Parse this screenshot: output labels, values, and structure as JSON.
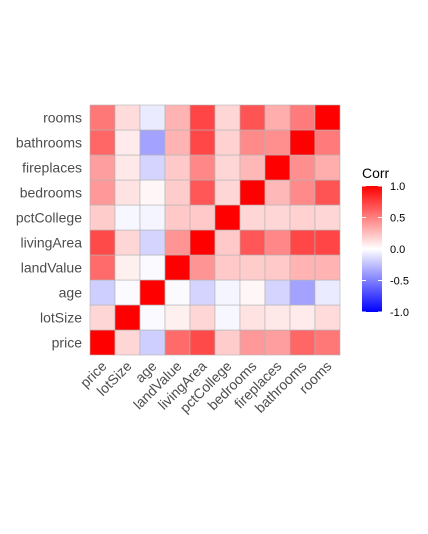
{
  "chart_data": {
    "type": "heatmap",
    "variables": [
      "price",
      "lotSize",
      "age",
      "landValue",
      "livingArea",
      "pctCollege",
      "bedrooms",
      "fireplaces",
      "bathrooms",
      "rooms"
    ],
    "matrix": [
      [
        1.0,
        0.16,
        -0.19,
        0.58,
        0.71,
        0.2,
        0.4,
        0.38,
        0.6,
        0.53
      ],
      [
        0.16,
        1.0,
        -0.02,
        0.06,
        0.16,
        -0.03,
        0.11,
        0.09,
        0.08,
        0.14
      ],
      [
        -0.19,
        -0.02,
        1.0,
        -0.02,
        -0.17,
        -0.04,
        0.03,
        -0.17,
        -0.36,
        -0.08
      ],
      [
        0.58,
        0.06,
        -0.02,
        1.0,
        0.42,
        0.21,
        0.2,
        0.21,
        0.3,
        0.3
      ],
      [
        0.71,
        0.16,
        -0.17,
        0.42,
        1.0,
        0.21,
        0.66,
        0.47,
        0.72,
        0.73
      ],
      [
        0.2,
        -0.03,
        -0.04,
        0.21,
        0.21,
        1.0,
        0.16,
        0.16,
        0.18,
        0.16
      ],
      [
        0.4,
        0.11,
        0.03,
        0.2,
        0.66,
        0.16,
        1.0,
        0.28,
        0.46,
        0.67
      ],
      [
        0.38,
        0.09,
        -0.17,
        0.21,
        0.47,
        0.16,
        0.28,
        1.0,
        0.44,
        0.32
      ],
      [
        0.6,
        0.08,
        -0.36,
        0.3,
        0.72,
        0.18,
        0.46,
        0.44,
        1.0,
        0.52
      ],
      [
        0.53,
        0.14,
        -0.08,
        0.3,
        0.73,
        0.16,
        0.67,
        0.32,
        0.52,
        1.0
      ]
    ],
    "legend": {
      "title": "Corr",
      "ticks": [
        "1.0",
        "0.5",
        "0.0",
        "-0.5",
        "-1.0"
      ],
      "tick_values": [
        1.0,
        0.5,
        0.0,
        -0.5,
        -1.0
      ],
      "range": [
        -1,
        1
      ],
      "colors": {
        "low": "#0000ff",
        "mid": "#ffffff",
        "high": "#ff0000"
      },
      "placement": "right"
    },
    "grid_color": "#b3b3b3"
  }
}
